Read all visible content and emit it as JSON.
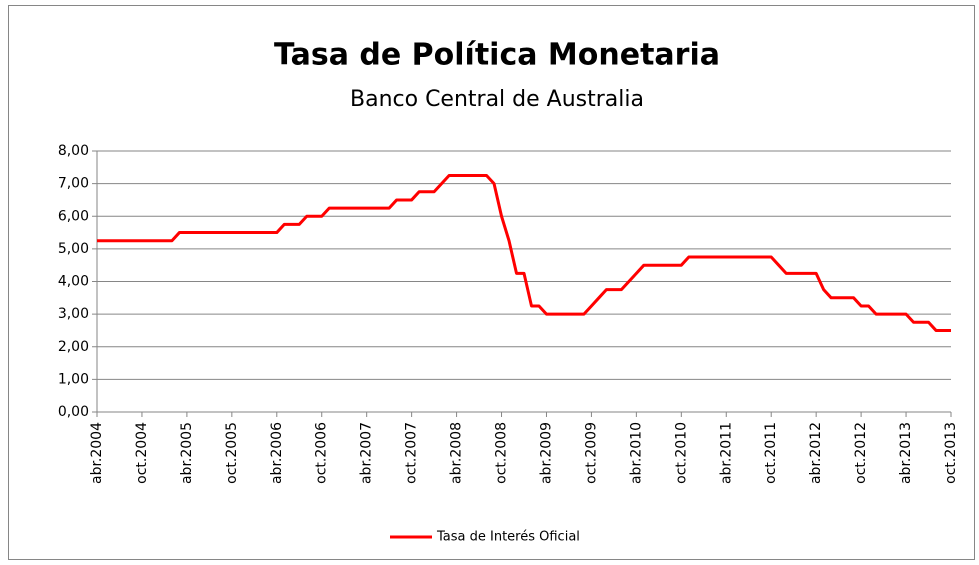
{
  "chart_data": {
    "type": "line",
    "title": "Tasa de Política Monetaria",
    "subtitle": "Banco Central de Australia",
    "categories": [
      "abr.2004",
      null,
      null,
      null,
      null,
      null,
      "oct.2004",
      null,
      null,
      null,
      null,
      null,
      "abr.2005",
      null,
      null,
      null,
      null,
      null,
      "oct.2005",
      null,
      null,
      null,
      null,
      null,
      "abr.2006",
      null,
      null,
      null,
      null,
      null,
      "oct.2006",
      null,
      null,
      null,
      null,
      null,
      "abr.2007",
      null,
      null,
      null,
      null,
      null,
      "oct.2007",
      null,
      null,
      null,
      null,
      null,
      "abr.2008",
      null,
      null,
      null,
      null,
      null,
      "oct.2008",
      null,
      null,
      null,
      null,
      null,
      "abr.2009",
      null,
      null,
      null,
      null,
      null,
      "oct.2009",
      null,
      null,
      null,
      null,
      null,
      "abr.2010",
      null,
      null,
      null,
      null,
      null,
      "oct.2010",
      null,
      null,
      null,
      null,
      null,
      "abr.2011",
      null,
      null,
      null,
      null,
      null,
      "oct.2011",
      null,
      null,
      null,
      null,
      null,
      "abr.2012",
      null,
      null,
      null,
      null,
      null,
      "oct.2012",
      null,
      null,
      null,
      null,
      null,
      "abr.2013",
      null,
      null,
      null,
      null,
      null,
      "oct.2013"
    ],
    "series": [
      {
        "name": "Tasa de Interés Oficial",
        "color": "#ff0000",
        "values": [
          5.25,
          5.25,
          5.25,
          5.25,
          5.25,
          5.25,
          5.25,
          5.25,
          5.25,
          5.25,
          5.25,
          5.5,
          5.5,
          5.5,
          5.5,
          5.5,
          5.5,
          5.5,
          5.5,
          5.5,
          5.5,
          5.5,
          5.5,
          5.5,
          5.5,
          5.75,
          5.75,
          5.75,
          6.0,
          6.0,
          6.0,
          6.25,
          6.25,
          6.25,
          6.25,
          6.25,
          6.25,
          6.25,
          6.25,
          6.25,
          6.5,
          6.5,
          6.5,
          6.75,
          6.75,
          6.75,
          7.0,
          7.25,
          7.25,
          7.25,
          7.25,
          7.25,
          7.25,
          7.0,
          6.0,
          5.25,
          4.25,
          4.25,
          3.25,
          3.25,
          3.0,
          3.0,
          3.0,
          3.0,
          3.0,
          3.0,
          3.25,
          3.5,
          3.75,
          3.75,
          3.75,
          4.0,
          4.25,
          4.5,
          4.5,
          4.5,
          4.5,
          4.5,
          4.5,
          4.75,
          4.75,
          4.75,
          4.75,
          4.75,
          4.75,
          4.75,
          4.75,
          4.75,
          4.75,
          4.75,
          4.75,
          4.5,
          4.25,
          4.25,
          4.25,
          4.25,
          4.25,
          3.75,
          3.5,
          3.5,
          3.5,
          3.5,
          3.25,
          3.25,
          3.0,
          3.0,
          3.0,
          3.0,
          3.0,
          2.75,
          2.75,
          2.75,
          2.5,
          2.5,
          2.5
        ]
      }
    ],
    "ylim": [
      0,
      8
    ],
    "yticks": [
      {
        "value": 0,
        "label": "0,00"
      },
      {
        "value": 1,
        "label": "1,00"
      },
      {
        "value": 2,
        "label": "2,00"
      },
      {
        "value": 3,
        "label": "3,00"
      },
      {
        "value": 4,
        "label": "4,00"
      },
      {
        "value": 5,
        "label": "5,00"
      },
      {
        "value": 6,
        "label": "6,00"
      },
      {
        "value": 7,
        "label": "7,00"
      },
      {
        "value": 8,
        "label": "8,00"
      }
    ],
    "grid": true,
    "legend": "bottom"
  }
}
